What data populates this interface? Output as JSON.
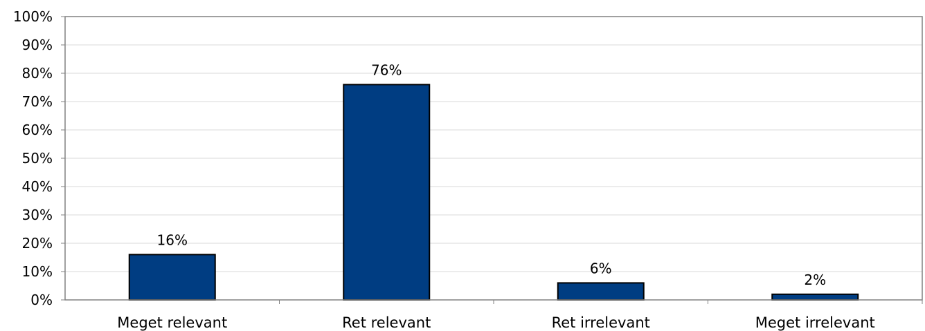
{
  "chart_data": {
    "type": "bar",
    "categories": [
      "Meget relevant",
      "Ret relevant",
      "Ret irrelevant",
      "Meget irrelevant"
    ],
    "values": [
      16,
      76,
      6,
      2
    ],
    "data_labels": [
      "16%",
      "76%",
      "6%",
      "2%"
    ],
    "yticks": [
      "0%",
      "10%",
      "20%",
      "30%",
      "40%",
      "50%",
      "60%",
      "70%",
      "80%",
      "90%",
      "100%"
    ],
    "ylim": [
      0,
      100
    ],
    "grid": true,
    "legend": "none",
    "colors": {
      "bar": "#003d82",
      "bar_border": "#000000",
      "grid": "#d9d9d9",
      "axis": "#808080"
    }
  }
}
